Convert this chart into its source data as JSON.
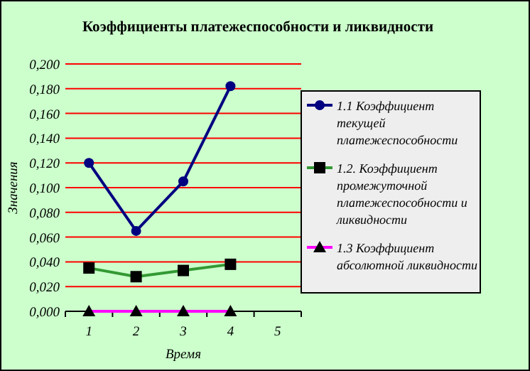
{
  "chart_data": {
    "type": "line",
    "title": "Коэффициенты платежеспособности и ликвидности",
    "xlabel": "Время",
    "ylabel": "Значения",
    "categories": [
      "1",
      "2",
      "3",
      "4",
      "5"
    ],
    "series": [
      {
        "name": "1.1 Коэффициент текущей платежеспособности",
        "color": "#000080",
        "marker": "circle",
        "values": [
          0.12,
          0.065,
          0.105,
          0.182,
          null
        ]
      },
      {
        "name": "1.2. Коэффициент промежуточной платежеспособности и ликвидности",
        "color": "#339933",
        "marker": "square",
        "values": [
          0.035,
          0.028,
          0.033,
          0.038,
          null
        ]
      },
      {
        "name": "1.3 Коэффициент абсолютной ликвидности",
        "color": "#ff00ff",
        "marker": "triangle",
        "values": [
          0,
          0,
          0,
          0,
          null
        ]
      }
    ],
    "ylim": [
      0,
      0.2
    ],
    "yticks": [
      {
        "value": 0,
        "label": "0,000"
      },
      {
        "value": 0.02,
        "label": "0,020"
      },
      {
        "value": 0.04,
        "label": "0,040"
      },
      {
        "value": 0.06,
        "label": "0,060"
      },
      {
        "value": 0.08,
        "label": "0,080"
      },
      {
        "value": 0.1,
        "label": "0,100"
      },
      {
        "value": 0.12,
        "label": "0,120"
      },
      {
        "value": 0.14,
        "label": "0,140"
      },
      {
        "value": 0.16,
        "label": "0,160"
      },
      {
        "value": 0.18,
        "label": "0,180"
      },
      {
        "value": 0.2,
        "label": "0,200"
      }
    ],
    "grid": "y",
    "legend": "right"
  }
}
